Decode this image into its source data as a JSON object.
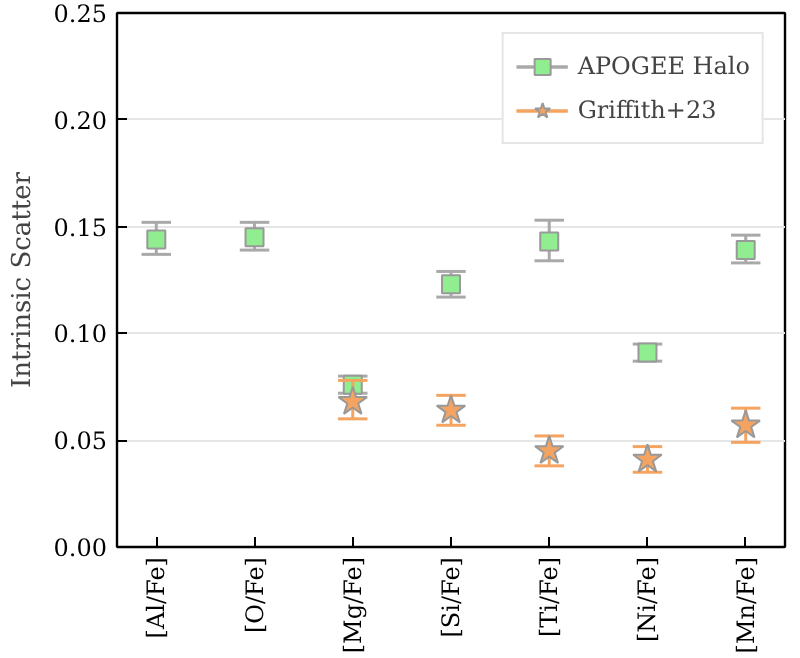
{
  "chart_data": {
    "type": "scatter",
    "ylabel": "Intrinsic Scatter",
    "categories": [
      "[Al/Fe]",
      "[O/Fe]",
      "[Mg/Fe]",
      "[Si/Fe]",
      "[Ti/Fe]",
      "[Ni/Fe]",
      "[Mn/Fe]"
    ],
    "ylim": [
      0,
      0.25
    ],
    "yticks": [
      {
        "value": 0,
        "label": "0.00"
      },
      {
        "value": 0.05,
        "label": "0.05"
      },
      {
        "value": 0.1,
        "label": "0.10"
      },
      {
        "value": 0.15,
        "label": "0.15"
      },
      {
        "value": 0.2,
        "label": "0.20"
      },
      {
        "value": 0.25,
        "label": "0.25"
      }
    ],
    "grid": "y",
    "legend": "top right",
    "series": [
      {
        "name": "APOGEE Halo",
        "color": "#90ee90",
        "marker": "square",
        "values": [
          0.144,
          0.145,
          0.076,
          0.123,
          0.143,
          0.091,
          0.139
        ],
        "errors": [
          [
            0.137,
            0.152
          ],
          [
            0.139,
            0.152
          ],
          [
            0.072,
            0.08
          ],
          [
            0.117,
            0.129
          ],
          [
            0.134,
            0.153
          ],
          [
            0.087,
            0.095
          ],
          [
            0.133,
            0.146
          ]
        ]
      },
      {
        "name": "Griffith+23",
        "color": "#f4a460",
        "marker": "star",
        "values": [
          null,
          null,
          0.068,
          0.064,
          0.045,
          0.041,
          0.057
        ],
        "errors": [
          null,
          null,
          [
            0.06,
            0.078
          ],
          [
            0.057,
            0.071
          ],
          [
            0.038,
            0.052
          ],
          [
            0.035,
            0.047
          ],
          [
            0.049,
            0.065
          ]
        ]
      }
    ]
  }
}
